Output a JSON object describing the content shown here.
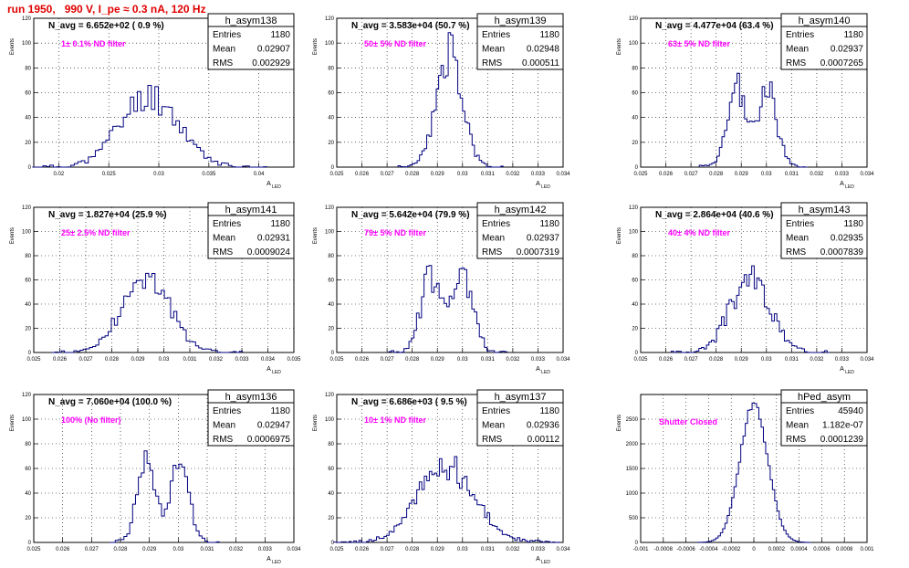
{
  "page": {
    "title": "run 1950,   990 V, I_pe ≈ 0.3 nA, 120 Hz"
  },
  "stats_labels": {
    "entries": "Entries",
    "mean": "Mean",
    "rms": "RMS"
  },
  "chart_data": [
    {
      "type": "bar",
      "name": "h_asym138",
      "navg": "N_avg = 6.652e+02 ( 0.9 %)",
      "filter_label": "1± 0.1% ND filter",
      "entries": "1180",
      "mean": "0.02907",
      "rms": "0.002929",
      "ylabel": "Events",
      "xlabel": "A",
      "xlim": [
        0.0175,
        0.0435
      ],
      "ylim": [
        0,
        120
      ],
      "xticks": [
        0.02,
        0.025,
        0.03,
        0.035,
        0.04
      ],
      "xtick_labels": [
        "0.02",
        "0.025",
        "0.03",
        "0.035",
        "0.04"
      ],
      "yticks": [
        0,
        20,
        40,
        60,
        80,
        100,
        120
      ],
      "ytick_labels": [
        "0",
        "20",
        "40",
        "60",
        "80",
        "100",
        "120"
      ],
      "dist": {
        "kind": "gauss",
        "mean": 0.02907,
        "sigma": 0.002929,
        "step": 0.00035,
        "seed": 11
      }
    },
    {
      "type": "bar",
      "name": "h_asym139",
      "navg": "N_avg = 3.583e+04 (50.7 %)",
      "filter_label": "50± 5% ND filter",
      "entries": "1180",
      "mean": "0.02948",
      "rms": "0.000511",
      "ylabel": "Events",
      "xlabel": "A",
      "xlim": [
        0.025,
        0.034
      ],
      "ylim": [
        0,
        120
      ],
      "xticks": [
        0.025,
        0.026,
        0.027,
        0.028,
        0.029,
        0.03,
        0.031,
        0.032,
        0.033,
        0.034
      ],
      "xtick_labels": [
        "0.025",
        "0.026",
        "0.027",
        "0.028",
        "0.029",
        "0.03",
        "0.031",
        "0.032",
        "0.033",
        "0.034"
      ],
      "yticks": [
        0,
        20,
        40,
        60,
        80,
        100,
        120
      ],
      "ytick_labels": [
        "0",
        "20",
        "40",
        "60",
        "80",
        "100",
        "120"
      ],
      "dist": {
        "kind": "gauss",
        "mean": 0.02948,
        "sigma": 0.000511,
        "step": 9.5e-05,
        "seed": 23
      }
    },
    {
      "type": "bar",
      "name": "h_asym140",
      "navg": "N_avg = 4.477e+04 (63.4 %)",
      "filter_label": "63± 5% ND filter",
      "entries": "1180",
      "mean": "0.02937",
      "rms": "0.0007265",
      "ylabel": "Events",
      "xlabel": "A",
      "xlim": [
        0.025,
        0.034
      ],
      "ylim": [
        0,
        120
      ],
      "xticks": [
        0.025,
        0.026,
        0.027,
        0.028,
        0.029,
        0.03,
        0.031,
        0.032,
        0.033,
        0.034
      ],
      "xtick_labels": [
        "0.025",
        "0.026",
        "0.027",
        "0.028",
        "0.029",
        "0.03",
        "0.031",
        "0.032",
        "0.033",
        "0.034"
      ],
      "yticks": [
        0,
        20,
        40,
        60,
        80,
        100,
        120
      ],
      "ytick_labels": [
        "0",
        "20",
        "40",
        "60",
        "80",
        "100",
        "120"
      ],
      "dist": {
        "kind": "bimodal",
        "m1": 0.02885,
        "m2": 0.03005,
        "sigma": 0.00038,
        "step": 0.0001,
        "seed": 37
      }
    },
    {
      "type": "bar",
      "name": "h_asym141",
      "navg": "N_avg = 1.827e+04 (25.9 %)",
      "filter_label": "25± 2.5% ND filter",
      "entries": "1180",
      "mean": "0.02931",
      "rms": "0.0009024",
      "ylabel": "Events",
      "xlabel": "A",
      "xlim": [
        0.025,
        0.035
      ],
      "ylim": [
        0,
        120
      ],
      "xticks": [
        0.025,
        0.026,
        0.027,
        0.028,
        0.029,
        0.03,
        0.031,
        0.032,
        0.033,
        0.034,
        0.035
      ],
      "xtick_labels": [
        "0.025",
        "0.026",
        "0.027",
        "0.028",
        "0.029",
        "0.03",
        "0.031",
        "0.032",
        "0.033",
        "0.034",
        "0.035"
      ],
      "yticks": [
        0,
        20,
        40,
        60,
        80,
        100,
        120
      ],
      "ytick_labels": [
        "0",
        "20",
        "40",
        "60",
        "80",
        "100",
        "120"
      ],
      "dist": {
        "kind": "gauss",
        "mean": 0.02931,
        "sigma": 0.0009024,
        "step": 0.00012,
        "seed": 41
      }
    },
    {
      "type": "bar",
      "name": "h_asym142",
      "navg": "N_avg = 5.642e+04 (79.9 %)",
      "filter_label": "79± 5% ND filter",
      "entries": "1180",
      "mean": "0.02937",
      "rms": "0.0007319",
      "ylabel": "Events",
      "xlabel": "A",
      "xlim": [
        0.025,
        0.034
      ],
      "ylim": [
        0,
        120
      ],
      "xticks": [
        0.025,
        0.026,
        0.027,
        0.028,
        0.029,
        0.03,
        0.031,
        0.032,
        0.033,
        0.034
      ],
      "xtick_labels": [
        "0.025",
        "0.026",
        "0.027",
        "0.028",
        "0.029",
        "0.03",
        "0.031",
        "0.032",
        "0.033",
        "0.034"
      ],
      "yticks": [
        0,
        20,
        40,
        60,
        80,
        100,
        120
      ],
      "ytick_labels": [
        "0",
        "20",
        "40",
        "60",
        "80",
        "100",
        "120"
      ],
      "dist": {
        "kind": "bimodal",
        "m1": 0.02875,
        "m2": 0.03,
        "sigma": 0.00042,
        "step": 0.0001,
        "seed": 53
      }
    },
    {
      "type": "bar",
      "name": "h_asym143",
      "navg": "N_avg = 2.864e+04 (40.6 %)",
      "filter_label": "40± 4% ND filter",
      "entries": "1180",
      "mean": "0.02935",
      "rms": "0.0007839",
      "ylabel": "Events",
      "xlabel": "A",
      "xlim": [
        0.025,
        0.034
      ],
      "ylim": [
        0,
        120
      ],
      "xticks": [
        0.025,
        0.026,
        0.027,
        0.028,
        0.029,
        0.03,
        0.031,
        0.032,
        0.033,
        0.034
      ],
      "xtick_labels": [
        "0.025",
        "0.026",
        "0.027",
        "0.028",
        "0.029",
        "0.03",
        "0.031",
        "0.032",
        "0.033",
        "0.034"
      ],
      "yticks": [
        0,
        20,
        40,
        60,
        80,
        100,
        120
      ],
      "ytick_labels": [
        "0",
        "20",
        "40",
        "60",
        "80",
        "100",
        "120"
      ],
      "dist": {
        "kind": "gauss",
        "mean": 0.02935,
        "sigma": 0.0007839,
        "step": 0.0001,
        "seed": 67
      }
    },
    {
      "type": "bar",
      "name": "h_asym136",
      "navg": "N_avg = 7.060e+04 (100.0 %)",
      "filter_label": "100% (No filter)",
      "entries": "1180",
      "mean": "0.02947",
      "rms": "0.0006975",
      "ylabel": "Events",
      "xlabel": "A",
      "xlim": [
        0.025,
        0.034
      ],
      "ylim": [
        0,
        120
      ],
      "xticks": [
        0.025,
        0.026,
        0.027,
        0.028,
        0.029,
        0.03,
        0.031,
        0.032,
        0.033,
        0.034
      ],
      "xtick_labels": [
        "0.025",
        "0.026",
        "0.027",
        "0.028",
        "0.029",
        "0.03",
        "0.031",
        "0.032",
        "0.033",
        "0.034"
      ],
      "yticks": [
        0,
        20,
        40,
        60,
        80,
        100,
        120
      ],
      "ytick_labels": [
        "0",
        "20",
        "40",
        "60",
        "80",
        "100",
        "120"
      ],
      "dist": {
        "kind": "bimodal",
        "m1": 0.0289,
        "m2": 0.03005,
        "sigma": 0.00032,
        "step": 0.0001,
        "seed": 71
      }
    },
    {
      "type": "bar",
      "name": "h_asym137",
      "navg": "N_avg = 6.686e+03 ( 9.5 %)",
      "filter_label": "10± 1% ND filter",
      "entries": "1180",
      "mean": "0.02936",
      "rms": "0.00112",
      "ylabel": "Events",
      "xlabel": "A",
      "xlim": [
        0.025,
        0.034
      ],
      "ylim": [
        0,
        120
      ],
      "xticks": [
        0.025,
        0.026,
        0.027,
        0.028,
        0.029,
        0.03,
        0.031,
        0.032,
        0.033,
        0.034
      ],
      "xtick_labels": [
        "0.025",
        "0.026",
        "0.027",
        "0.028",
        "0.029",
        "0.03",
        "0.031",
        "0.032",
        "0.033",
        "0.034"
      ],
      "yticks": [
        0,
        20,
        40,
        60,
        80,
        100,
        120
      ],
      "ytick_labels": [
        "0",
        "20",
        "40",
        "60",
        "80",
        "100",
        "120"
      ],
      "dist": {
        "kind": "gauss",
        "mean": 0.02936,
        "sigma": 0.00112,
        "step": 0.0001,
        "seed": 83
      }
    },
    {
      "type": "bar",
      "name": "hPed_asym",
      "navg": "",
      "filter_label": "Shutter Closed",
      "entries": "45940",
      "mean": "1.182e-07",
      "rms": "0.0001239",
      "ylabel": "Events",
      "xlabel": "",
      "xlim": [
        -0.001,
        0.001
      ],
      "ylim": [
        0,
        3000
      ],
      "xticks": [
        -0.001,
        -0.0008,
        -0.0006,
        -0.0004,
        -0.0002,
        0,
        0.0002,
        0.0004,
        0.0006,
        0.0008,
        0.001
      ],
      "xtick_labels": [
        "-0.001",
        "-0.0008",
        "-0.0006",
        "-0.0004",
        "-0.0002",
        "0",
        "0.0002",
        "0.0004",
        "0.0006",
        "0.0008",
        "0.001"
      ],
      "yticks": [
        0,
        500,
        1000,
        1500,
        2000,
        2500
      ],
      "ytick_labels": [
        "0",
        "500",
        "1000",
        "1500",
        "2000",
        "2500"
      ],
      "dist": {
        "kind": "gauss",
        "mean": 0.0,
        "sigma": 0.0001239,
        "step": 2e-05,
        "seed": 97
      }
    }
  ]
}
